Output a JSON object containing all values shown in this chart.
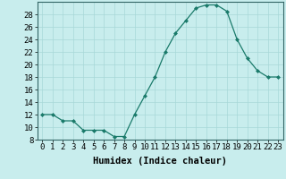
{
  "x": [
    0,
    1,
    2,
    3,
    4,
    5,
    6,
    7,
    8,
    9,
    10,
    11,
    12,
    13,
    14,
    15,
    16,
    17,
    18,
    19,
    20,
    21,
    22,
    23
  ],
  "y": [
    12,
    12,
    11,
    11,
    9.5,
    9.5,
    9.5,
    8.5,
    8.5,
    12,
    15,
    18,
    22,
    25,
    27,
    29,
    29.5,
    29.5,
    28.5,
    24,
    21,
    19,
    18,
    18
  ],
  "line_color": "#1a7a6a",
  "marker_color": "#1a7a6a",
  "bg_color": "#c8eded",
  "grid_color": "#a8d8d8",
  "xlabel": "Humidex (Indice chaleur)",
  "ylim": [
    8,
    30
  ],
  "xlim": [
    -0.5,
    23.5
  ],
  "yticks": [
    8,
    10,
    12,
    14,
    16,
    18,
    20,
    22,
    24,
    26,
    28
  ],
  "xticks": [
    0,
    1,
    2,
    3,
    4,
    5,
    6,
    7,
    8,
    9,
    10,
    11,
    12,
    13,
    14,
    15,
    16,
    17,
    18,
    19,
    20,
    21,
    22,
    23
  ],
  "xlabel_fontsize": 7.5,
  "tick_fontsize": 6.5
}
